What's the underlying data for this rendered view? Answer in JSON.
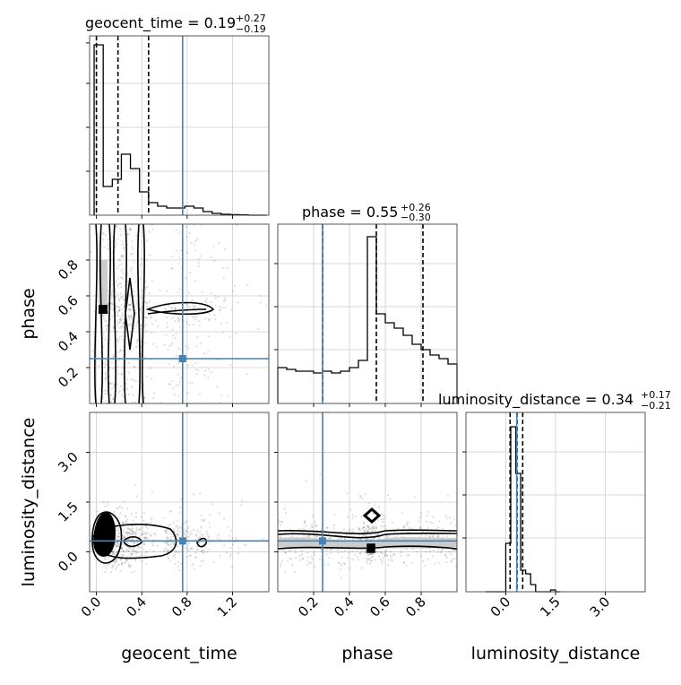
{
  "chart_data": {
    "type": "corner",
    "parameters": [
      "geocent_time",
      "phase",
      "luminosity_distance"
    ],
    "truths": {
      "geocent_time": 0.76,
      "phase": 0.25,
      "luminosity_distance": 0.33
    },
    "grid": true,
    "titles": [
      {
        "param": "geocent_time",
        "prefix": "geocent_time = 0.19",
        "sup": "+0.27",
        "sub": "−0.19"
      },
      {
        "param": "phase",
        "prefix": "phase = 0.55",
        "sup": "+0.26",
        "sub": "−0.30"
      },
      {
        "param": "luminosity_distance",
        "prefix": "luminosity_distance = 0.34",
        "sup": "+0.17",
        "sub": "−0.21"
      }
    ],
    "axis_labels": {
      "x": [
        "geocent_time",
        "phase",
        "luminosity_distance"
      ],
      "y": [
        "phase",
        "luminosity_distance"
      ]
    },
    "ticks": {
      "geocent_time": [
        "0.0",
        "0.4",
        "0.8",
        "1.2"
      ],
      "phase": [
        "0.2",
        "0.4",
        "0.6",
        "0.8"
      ],
      "luminosity_distance": [
        "0.0",
        "1.5",
        "3.0"
      ]
    },
    "ranges": {
      "geocent_time": [
        -0.06,
        1.52
      ],
      "phase": [
        0.0,
        1.0
      ],
      "luminosity_distance": [
        -1.2,
        4.2
      ]
    },
    "quantiles": {
      "geocent_time": [
        0.0,
        0.19,
        0.46
      ],
      "phase": [
        0.25,
        0.55,
        0.81
      ],
      "luminosity_distance": [
        0.13,
        0.34,
        0.51
      ]
    },
    "histograms": {
      "geocent_time": {
        "edges": [
          -0.02,
          0.06,
          0.14,
          0.22,
          0.3,
          0.38,
          0.46,
          0.54,
          0.62,
          0.7,
          0.78,
          0.86,
          0.94,
          1.02,
          1.1,
          1.18,
          1.26,
          1.34,
          1.42,
          1.5
        ],
        "counts": [
          0.95,
          0.16,
          0.2,
          0.34,
          0.26,
          0.13,
          0.07,
          0.05,
          0.04,
          0.04,
          0.05,
          0.04,
          0.02,
          0.01,
          0.005,
          0.003,
          0.002,
          0.0,
          0.0
        ],
        "ymax": 1.0
      },
      "phase": {
        "edges": [
          0.0,
          0.05,
          0.1,
          0.15,
          0.2,
          0.25,
          0.3,
          0.35,
          0.4,
          0.45,
          0.5,
          0.55,
          0.6,
          0.65,
          0.7,
          0.75,
          0.8,
          0.85,
          0.9,
          0.95,
          1.0
        ],
        "counts": [
          0.2,
          0.19,
          0.18,
          0.18,
          0.17,
          0.18,
          0.17,
          0.18,
          0.2,
          0.24,
          0.93,
          0.5,
          0.45,
          0.42,
          0.38,
          0.33,
          0.3,
          0.27,
          0.25,
          0.22
        ],
        "ymax": 1.0
      },
      "luminosity_distance": {
        "edges": [
          -0.6,
          -0.3,
          -0.15,
          0.0,
          0.15,
          0.3,
          0.45,
          0.6,
          0.75,
          0.9,
          1.05,
          1.2,
          1.35,
          1.5,
          1.65
        ],
        "counts": [
          0.0,
          0.0,
          0.0,
          0.27,
          0.92,
          0.66,
          0.12,
          0.1,
          0.04,
          0.0,
          0.0,
          0.0,
          0.01,
          0.0
        ],
        "ymax": 1.0
      }
    }
  }
}
